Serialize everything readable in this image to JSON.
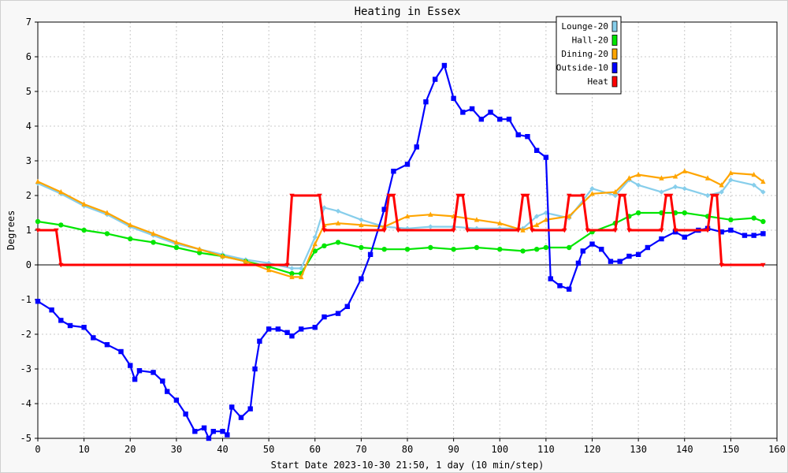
{
  "chart_data": {
    "type": "line",
    "title": "Heating in Essex",
    "xlabel": "Start Date 2023-10-30 21:50, 1 day (10 min/step)",
    "ylabel": "Degrees",
    "xlim": [
      0,
      160
    ],
    "ylim": [
      -5,
      7
    ],
    "xticks": [
      0,
      10,
      20,
      30,
      40,
      50,
      60,
      70,
      80,
      90,
      100,
      110,
      120,
      130,
      140,
      150,
      160
    ],
    "yticks": [
      -5,
      -4,
      -3,
      -2,
      -1,
      0,
      1,
      2,
      3,
      4,
      5,
      6,
      7
    ],
    "grid": true,
    "legend_position": "top-right",
    "zero_line": true,
    "series": [
      {
        "name": "Lounge-20",
        "color": "#87ceeb",
        "marker": "diamond",
        "x": [
          0,
          5,
          10,
          15,
          20,
          25,
          30,
          35,
          40,
          45,
          50,
          55,
          57,
          60,
          62,
          65,
          70,
          75,
          80,
          85,
          90,
          95,
          100,
          105,
          108,
          110,
          115,
          120,
          125,
          128,
          130,
          135,
          138,
          140,
          145,
          148,
          150,
          155,
          157
        ],
        "y": [
          2.35,
          2.05,
          1.7,
          1.45,
          1.1,
          0.85,
          0.6,
          0.45,
          0.3,
          0.15,
          0.05,
          -0.1,
          -0.1,
          0.8,
          1.65,
          1.55,
          1.3,
          1.1,
          1.05,
          1.1,
          1.1,
          1.05,
          1.05,
          1.05,
          1.4,
          1.5,
          1.35,
          2.2,
          2.0,
          2.45,
          2.3,
          2.1,
          2.25,
          2.2,
          2.0,
          2.1,
          2.45,
          2.3,
          2.1
        ]
      },
      {
        "name": "Hall-20",
        "color": "#00e600",
        "marker": "circle",
        "x": [
          0,
          5,
          10,
          15,
          20,
          25,
          30,
          35,
          40,
          45,
          50,
          55,
          57,
          60,
          62,
          65,
          70,
          75,
          80,
          85,
          90,
          95,
          100,
          105,
          108,
          110,
          115,
          120,
          125,
          128,
          130,
          135,
          138,
          140,
          145,
          150,
          155,
          157
        ],
        "y": [
          1.25,
          1.15,
          1.0,
          0.9,
          0.75,
          0.65,
          0.5,
          0.35,
          0.25,
          0.1,
          -0.05,
          -0.25,
          -0.25,
          0.4,
          0.55,
          0.65,
          0.5,
          0.45,
          0.45,
          0.5,
          0.45,
          0.5,
          0.45,
          0.4,
          0.45,
          0.5,
          0.5,
          0.95,
          1.2,
          1.4,
          1.5,
          1.5,
          1.5,
          1.5,
          1.4,
          1.3,
          1.35,
          1.25
        ]
      },
      {
        "name": "Dining-20",
        "color": "#ffa500",
        "marker": "triangle",
        "x": [
          0,
          5,
          10,
          15,
          20,
          25,
          30,
          35,
          40,
          45,
          50,
          55,
          57,
          60,
          62,
          65,
          70,
          75,
          80,
          85,
          90,
          95,
          100,
          105,
          108,
          110,
          115,
          120,
          125,
          128,
          130,
          135,
          138,
          140,
          145,
          148,
          150,
          155,
          157
        ],
        "y": [
          2.4,
          2.1,
          1.75,
          1.5,
          1.15,
          0.9,
          0.65,
          0.45,
          0.25,
          0.1,
          -0.15,
          -0.35,
          -0.35,
          0.6,
          1.15,
          1.2,
          1.15,
          1.1,
          1.4,
          1.45,
          1.4,
          1.3,
          1.2,
          1.0,
          1.15,
          1.3,
          1.4,
          2.05,
          2.1,
          2.5,
          2.6,
          2.5,
          2.55,
          2.7,
          2.5,
          2.3,
          2.65,
          2.6,
          2.4
        ]
      },
      {
        "name": "Outside-10",
        "color": "#0000ff",
        "marker": "square",
        "x": [
          0,
          3,
          5,
          7,
          10,
          12,
          15,
          18,
          20,
          21,
          22,
          25,
          27,
          28,
          30,
          32,
          34,
          36,
          37,
          38,
          40,
          41,
          42,
          44,
          46,
          47,
          48,
          50,
          52,
          54,
          55,
          57,
          60,
          62,
          65,
          67,
          70,
          72,
          75,
          77,
          80,
          82,
          84,
          86,
          88,
          90,
          92,
          94,
          96,
          98,
          100,
          102,
          104,
          106,
          108,
          110,
          111,
          113,
          115,
          117,
          118,
          120,
          122,
          124,
          126,
          128,
          130,
          132,
          135,
          138,
          140,
          143,
          145,
          148,
          150,
          153,
          155,
          157
        ],
        "y": [
          -1.05,
          -1.3,
          -1.6,
          -1.75,
          -1.8,
          -2.1,
          -2.3,
          -2.5,
          -2.9,
          -3.3,
          -3.05,
          -3.1,
          -3.35,
          -3.65,
          -3.9,
          -4.3,
          -4.8,
          -4.7,
          -5.0,
          -4.8,
          -4.8,
          -4.9,
          -4.1,
          -4.4,
          -4.15,
          -3.0,
          -2.2,
          -1.85,
          -1.85,
          -1.95,
          -2.05,
          -1.85,
          -1.8,
          -1.5,
          -1.4,
          -1.2,
          -0.4,
          0.3,
          1.6,
          2.7,
          2.9,
          3.4,
          4.7,
          5.35,
          5.75,
          4.8,
          4.4,
          4.5,
          4.2,
          4.4,
          4.2,
          4.2,
          3.75,
          3.7,
          3.3,
          3.1,
          -0.4,
          -0.6,
          -0.7,
          0.05,
          0.4,
          0.6,
          0.45,
          0.1,
          0.1,
          0.25,
          0.3,
          0.5,
          0.75,
          0.95,
          0.8,
          1.0,
          1.05,
          0.95,
          1.0,
          0.85,
          0.85,
          0.9
        ]
      },
      {
        "name": "Heat",
        "color": "#ff0000",
        "marker": "triangle-down",
        "x": [
          0,
          4,
          5,
          54,
          55,
          61,
          62,
          75,
          76,
          77,
          78,
          90,
          91,
          92,
          93,
          104,
          105,
          106,
          107,
          114,
          115,
          118,
          119,
          125,
          126,
          127,
          128,
          135,
          136,
          137,
          138,
          145,
          146,
          147,
          148,
          157
        ],
        "y": [
          1,
          1,
          0,
          0,
          2,
          2,
          1,
          1,
          2,
          2,
          1,
          1,
          2,
          2,
          1,
          1,
          2,
          2,
          1,
          1,
          2,
          2,
          1,
          1,
          2,
          2,
          1,
          1,
          2,
          2,
          1,
          1,
          2,
          2,
          0,
          0
        ]
      }
    ]
  }
}
